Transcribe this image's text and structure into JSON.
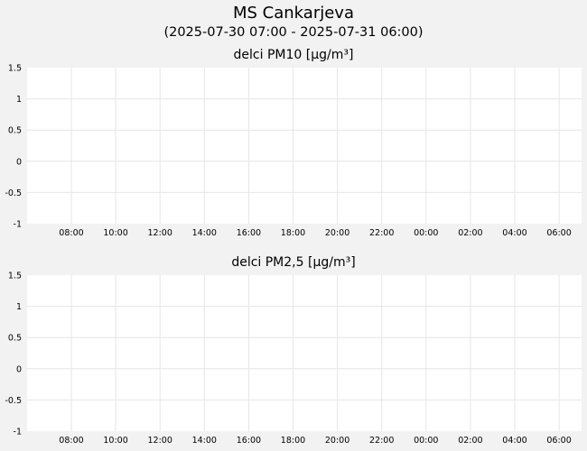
{
  "header": {
    "title": "MS Cankarjeva",
    "period": "(2025-07-30 07:00 - 2025-07-31 06:00)"
  },
  "colors": {
    "page_background": "#f2f2f2",
    "plot_background": "#ffffff",
    "grid": "#e6e6e6"
  },
  "chart_data": [
    {
      "type": "line",
      "title": "delci PM10 [µg/m³]",
      "xlabel": "",
      "ylabel": "",
      "x_ticks": [
        "08:00",
        "10:00",
        "12:00",
        "14:00",
        "16:00",
        "18:00",
        "20:00",
        "22:00",
        "00:00",
        "02:00",
        "04:00",
        "06:00"
      ],
      "y_ticks": [
        "1.5",
        "1",
        "0.5",
        "0",
        "-0.5",
        "-1"
      ],
      "ylim": [
        -1,
        1.5
      ],
      "grid": true,
      "series": []
    },
    {
      "type": "line",
      "title": "delci PM2,5 [µg/m³]",
      "xlabel": "",
      "ylabel": "",
      "x_ticks": [
        "08:00",
        "10:00",
        "12:00",
        "14:00",
        "16:00",
        "18:00",
        "20:00",
        "22:00",
        "00:00",
        "02:00",
        "04:00",
        "06:00"
      ],
      "y_ticks": [
        "1.5",
        "1",
        "0.5",
        "0",
        "-0.5",
        "-1"
      ],
      "ylim": [
        -1,
        1.5
      ],
      "grid": true,
      "series": []
    }
  ]
}
